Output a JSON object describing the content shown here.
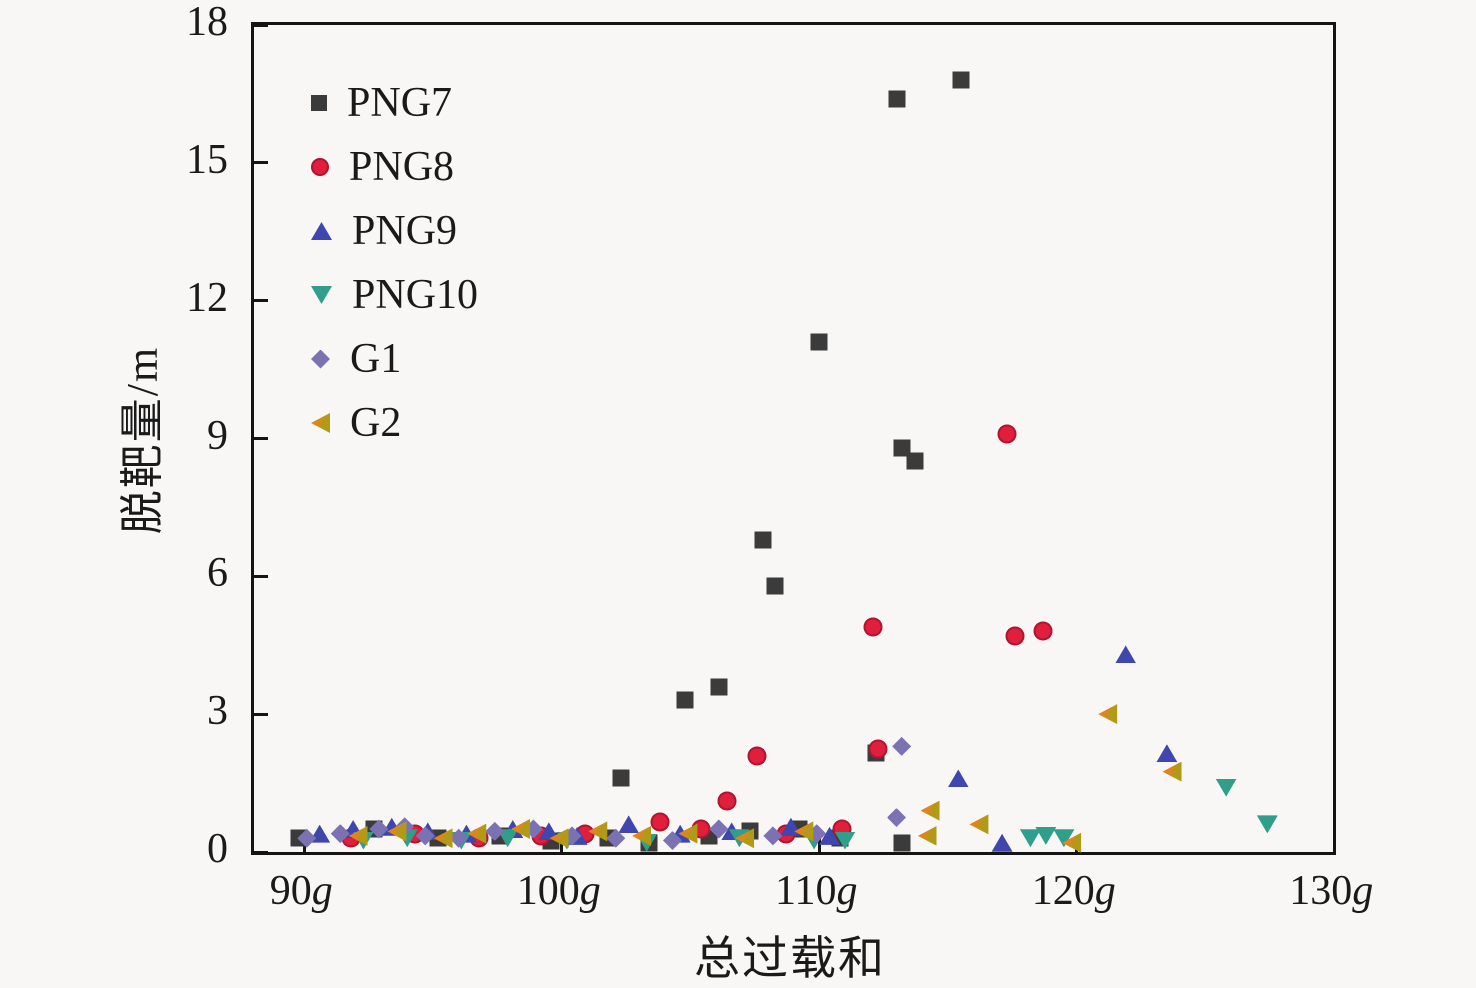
{
  "figure": {
    "background": "#f8f7f5",
    "text_color": "#1a1a1a",
    "axis_color": "#141414"
  },
  "chart_data": {
    "type": "scatter",
    "title": "",
    "xlabel": "总过载和",
    "ylabel": "脱靶量/m",
    "xlim": [
      88.05,
      129.95
    ],
    "ylim": [
      0,
      18
    ],
    "grid": false,
    "legend_position": "top-left",
    "x_ticks": [
      {
        "value": 90,
        "num": "90",
        "unit": "g"
      },
      {
        "value": 100,
        "num": "100",
        "unit": "g"
      },
      {
        "value": 110,
        "num": "110",
        "unit": "g"
      },
      {
        "value": 120,
        "num": "120",
        "unit": "g"
      },
      {
        "value": 130,
        "num": "130",
        "unit": "g"
      }
    ],
    "y_ticks": [
      {
        "value": 0,
        "label": "0"
      },
      {
        "value": 3,
        "label": "3"
      },
      {
        "value": 6,
        "label": "6"
      },
      {
        "value": 9,
        "label": "9"
      },
      {
        "value": 12,
        "label": "12"
      },
      {
        "value": 15,
        "label": "15"
      },
      {
        "value": 18,
        "label": "18"
      }
    ],
    "series": [
      {
        "name": "PNG7",
        "marker": "square",
        "color": "#3b3b3b",
        "points": [
          [
            89.8,
            0.3
          ],
          [
            92.7,
            0.5
          ],
          [
            95.2,
            0.3
          ],
          [
            97.6,
            0.35
          ],
          [
            99.6,
            0.25
          ],
          [
            101.8,
            0.3
          ],
          [
            102.3,
            1.6
          ],
          [
            103.4,
            0.2
          ],
          [
            104.8,
            3.3
          ],
          [
            105.7,
            0.35
          ],
          [
            106.1,
            3.6
          ],
          [
            107.3,
            0.45
          ],
          [
            107.8,
            6.8
          ],
          [
            108.3,
            5.8
          ],
          [
            109.2,
            0.5
          ],
          [
            110.0,
            11.1
          ],
          [
            110.8,
            0.3
          ],
          [
            112.2,
            2.15
          ],
          [
            113.0,
            16.4
          ],
          [
            113.2,
            8.8
          ],
          [
            113.2,
            0.2
          ],
          [
            113.7,
            8.5
          ],
          [
            115.5,
            16.8
          ]
        ]
      },
      {
        "name": "PNG8",
        "marker": "circle",
        "color": "#e01f3d",
        "points": [
          [
            91.8,
            0.3
          ],
          [
            94.3,
            0.4
          ],
          [
            96.8,
            0.3
          ],
          [
            99.2,
            0.35
          ],
          [
            100.9,
            0.4
          ],
          [
            103.8,
            0.65
          ],
          [
            105.4,
            0.5
          ],
          [
            106.4,
            1.1
          ],
          [
            107.6,
            2.1
          ],
          [
            108.7,
            0.4
          ],
          [
            110.9,
            0.5
          ],
          [
            112.1,
            4.9
          ],
          [
            112.3,
            2.25
          ],
          [
            117.3,
            9.1
          ],
          [
            117.6,
            4.7
          ],
          [
            118.7,
            4.8
          ]
        ]
      },
      {
        "name": "PNG9",
        "marker": "tri-up",
        "color": "#3f46ad",
        "points": [
          [
            90.6,
            0.4
          ],
          [
            91.9,
            0.5
          ],
          [
            93.4,
            0.55
          ],
          [
            94.8,
            0.45
          ],
          [
            96.3,
            0.4
          ],
          [
            98.1,
            0.5
          ],
          [
            99.5,
            0.45
          ],
          [
            100.6,
            0.35
          ],
          [
            102.6,
            0.6
          ],
          [
            104.6,
            0.4
          ],
          [
            106.6,
            0.45
          ],
          [
            108.9,
            0.55
          ],
          [
            110.4,
            0.35
          ],
          [
            115.4,
            1.6
          ],
          [
            117.1,
            0.2
          ],
          [
            121.9,
            4.3
          ],
          [
            123.5,
            2.15
          ]
        ]
      },
      {
        "name": "PNG10",
        "marker": "tri-down",
        "color": "#2f9e8a",
        "points": [
          [
            92.3,
            0.25
          ],
          [
            94.0,
            0.3
          ],
          [
            96.1,
            0.25
          ],
          [
            97.9,
            0.3
          ],
          [
            100.2,
            0.25
          ],
          [
            103.3,
            0.2
          ],
          [
            106.9,
            0.3
          ],
          [
            109.8,
            0.25
          ],
          [
            111.0,
            0.25
          ],
          [
            118.2,
            0.3
          ],
          [
            118.8,
            0.35
          ],
          [
            119.5,
            0.3
          ],
          [
            125.8,
            1.4
          ],
          [
            127.4,
            0.6
          ]
        ]
      },
      {
        "name": "G1",
        "marker": "diamond",
        "color": "#7b72b4",
        "points": [
          [
            90.1,
            0.3
          ],
          [
            91.4,
            0.4
          ],
          [
            92.9,
            0.5
          ],
          [
            93.9,
            0.55
          ],
          [
            94.7,
            0.35
          ],
          [
            96.0,
            0.3
          ],
          [
            97.4,
            0.45
          ],
          [
            98.9,
            0.5
          ],
          [
            100.4,
            0.35
          ],
          [
            102.1,
            0.3
          ],
          [
            104.3,
            0.25
          ],
          [
            106.1,
            0.5
          ],
          [
            108.2,
            0.35
          ],
          [
            109.9,
            0.4
          ],
          [
            113.0,
            0.75
          ],
          [
            113.2,
            2.3
          ]
        ]
      },
      {
        "name": "G2",
        "marker": "tri-left",
        "color": "#b09a16",
        "color2": "#e0851c",
        "points": [
          [
            92.1,
            0.35
          ],
          [
            93.6,
            0.45
          ],
          [
            95.4,
            0.3
          ],
          [
            96.7,
            0.4
          ],
          [
            98.4,
            0.5
          ],
          [
            99.9,
            0.3
          ],
          [
            101.4,
            0.45
          ],
          [
            103.1,
            0.35
          ],
          [
            104.9,
            0.4
          ],
          [
            107.1,
            0.3
          ],
          [
            109.4,
            0.45
          ],
          [
            114.2,
            0.35
          ],
          [
            114.3,
            0.9
          ],
          [
            116.2,
            0.6
          ],
          [
            119.8,
            0.2
          ],
          [
            121.2,
            3.0
          ],
          [
            123.7,
            1.75
          ]
        ]
      }
    ],
    "legend": {
      "items": [
        "PNG7",
        "PNG8",
        "PNG9",
        "PNG10",
        "G1",
        "G2"
      ],
      "marker_x": 66,
      "label_x": 101,
      "first_row_y": 78,
      "row_step": 64
    }
  }
}
